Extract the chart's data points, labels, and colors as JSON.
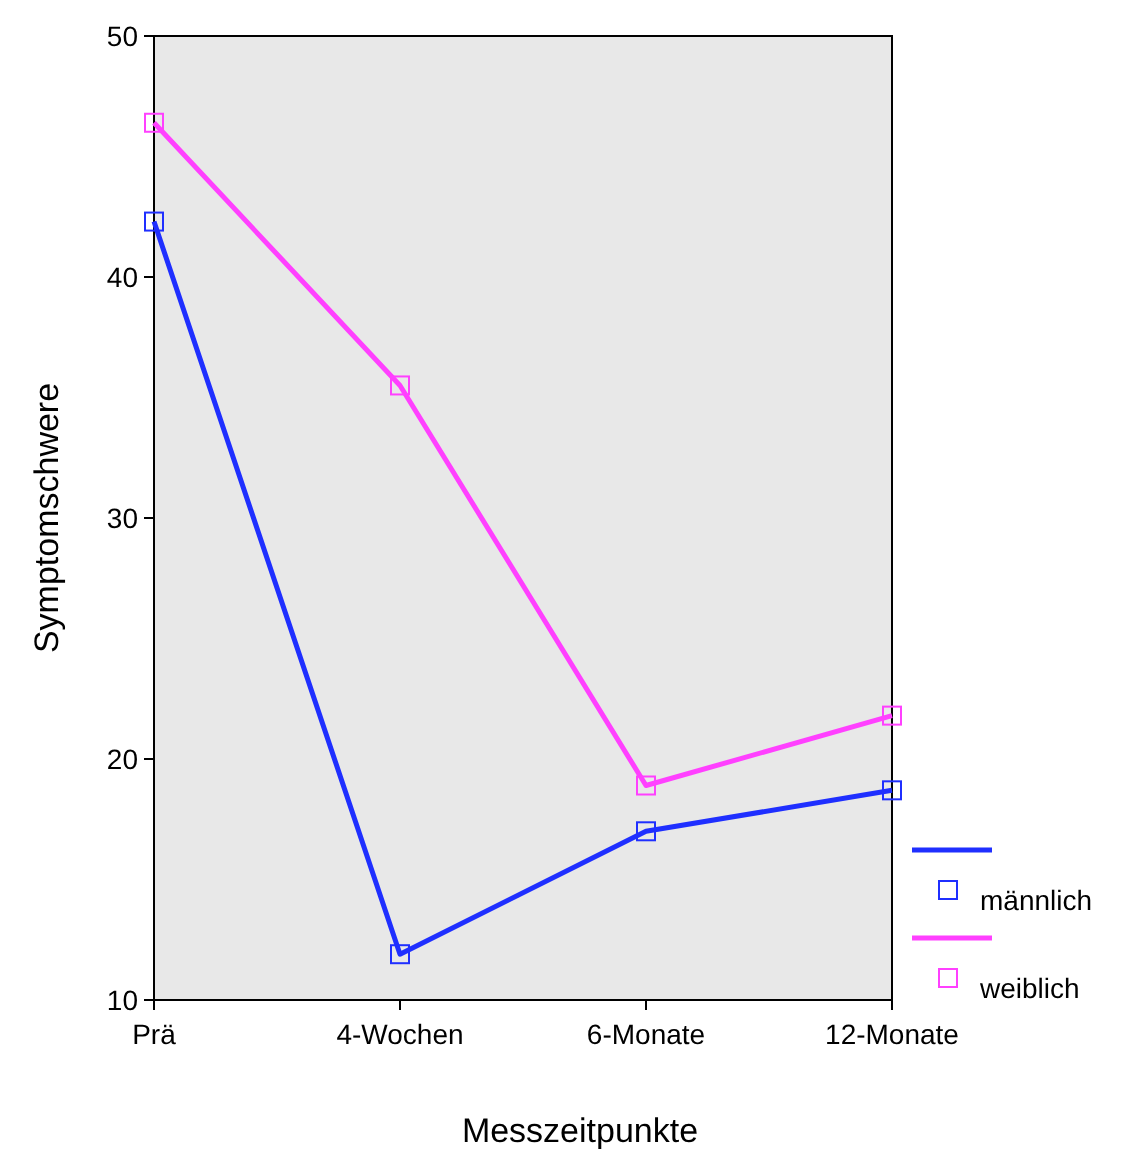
{
  "chart_data": {
    "type": "line",
    "xlabel": "Messzeitpunkte",
    "ylabel": "Symptomschwere",
    "categories": [
      "Prä",
      "4-Wochen",
      "6-Monate",
      "12-Monate"
    ],
    "series": [
      {
        "name": "männlich",
        "color": "#1f2fff",
        "values": [
          42.3,
          11.9,
          17.0,
          18.7
        ]
      },
      {
        "name": "weiblich",
        "color": "#ff40ff",
        "values": [
          46.4,
          35.5,
          18.9,
          21.8
        ]
      }
    ],
    "ylim": [
      10,
      50
    ],
    "yticks": [
      10,
      20,
      30,
      40,
      50
    ],
    "grid": false,
    "legend": "bottom right",
    "marker": "square",
    "line_style": "solid"
  }
}
